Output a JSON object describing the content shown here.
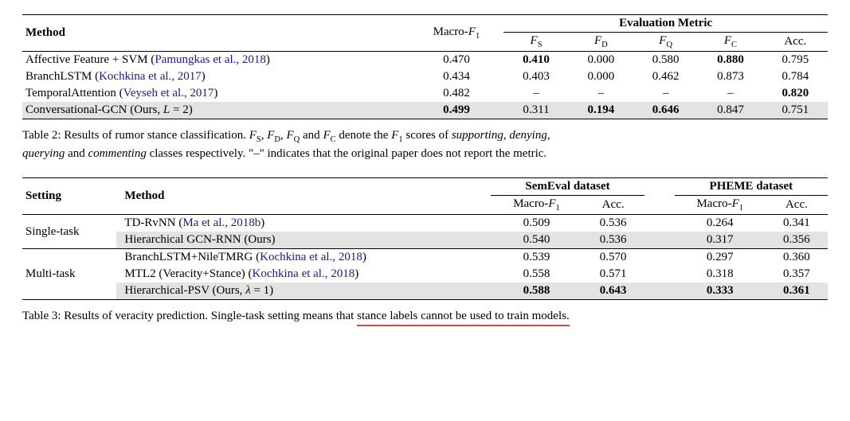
{
  "table2": {
    "header": {
      "method": "Method",
      "eval_metric": "Evaluation Metric",
      "macroF1": "Macro-",
      "fs": "F",
      "fd": "F",
      "fq": "F",
      "fc": "F",
      "acc": "Acc."
    },
    "rows": [
      {
        "method_prefix": "Affective Feature + SVM (",
        "cite": "Pamungkas et al., 2018",
        "method_suffix": ")",
        "macro": "0.470",
        "fs": "0.410",
        "fs_bold": true,
        "fd": "0.000",
        "fq": "0.580",
        "fc": "0.880",
        "fc_bold": true,
        "acc": "0.795",
        "hl": false
      },
      {
        "method_prefix": "BranchLSTM (",
        "cite": "Kochkina et al., 2017",
        "method_suffix": ")",
        "macro": "0.434",
        "fs": "0.403",
        "fd": "0.000",
        "fq": "0.462",
        "fc": "0.873",
        "acc": "0.784",
        "hl": false
      },
      {
        "method_prefix": "TemporalAttention (",
        "cite": "Veyseh et al., 2017",
        "method_suffix": ")",
        "macro": "0.482",
        "fs": "–",
        "fd": "–",
        "fq": "–",
        "fc": "–",
        "acc": "0.820",
        "acc_bold": true,
        "hl": false
      },
      {
        "method_prefix": "Conversational-GCN (Ours, ",
        "cite": "",
        "method_suffix": "L = 2)",
        "macro": "0.499",
        "macro_bold": true,
        "fs": "0.311",
        "fd": "0.194",
        "fd_bold": true,
        "fq": "0.646",
        "fq_bold": true,
        "fc": "0.847",
        "acc": "0.751",
        "hl": true,
        "no_cite": true,
        "method_full": "Conversational-GCN (Ours, L = 2)"
      }
    ],
    "caption_prefix": "Table 2: Results of rumor stance classification. ",
    "caption_mid": " denote the ",
    "caption_scores": " scores of ",
    "supporting": "supporting",
    "denying": "denying",
    "querying": "querying",
    "commenting": "commenting",
    "caption_tail": " classes respectively. \"–\" indicates that the original paper does not report the metric.",
    "and": " and "
  },
  "table3": {
    "header": {
      "setting": "Setting",
      "method": "Method",
      "semeval": "SemEval dataset",
      "pheme": "PHEME dataset",
      "macroF1": "Macro-",
      "acc": "Acc."
    },
    "groups": [
      {
        "setting": "Single-task",
        "rows": [
          {
            "prefix": "TD-RvNN (",
            "cite": "Ma et al., 2018b",
            "suffix": ")",
            "s_macro": "0.509",
            "s_acc": "0.536",
            "p_macro": "0.264",
            "p_acc": "0.341",
            "hl": false
          },
          {
            "full": "Hierarchical GCN-RNN (Ours)",
            "s_macro": "0.540",
            "s_acc": "0.536",
            "p_macro": "0.317",
            "p_acc": "0.356",
            "hl": true,
            "no_cite": true
          }
        ]
      },
      {
        "setting": "Multi-task",
        "rows": [
          {
            "prefix": "BranchLSTM+NileTMRG (",
            "cite": "Kochkina et al., 2018",
            "suffix": ")",
            "s_macro": "0.539",
            "s_acc": "0.570",
            "p_macro": "0.297",
            "p_acc": "0.360",
            "hl": false
          },
          {
            "prefix": "MTL2 (Veracity+Stance) (",
            "cite": "Kochkina et al., 2018",
            "suffix": ")",
            "s_macro": "0.558",
            "s_acc": "0.571",
            "p_macro": "0.318",
            "p_acc": "0.357",
            "hl": false
          },
          {
            "full": "Hierarchical-PSV (Ours, λ = 1)",
            "s_macro": "0.588",
            "s_macro_bold": true,
            "s_acc": "0.643",
            "s_acc_bold": true,
            "p_macro": "0.333",
            "p_macro_bold": true,
            "p_acc": "0.361",
            "p_acc_bold": true,
            "hl": true,
            "no_cite": true
          }
        ]
      }
    ],
    "caption_prefix": "Table 3: Results of veracity prediction. Single-task setting means that ",
    "caption_under": "stance labels cannot be used to train models."
  }
}
